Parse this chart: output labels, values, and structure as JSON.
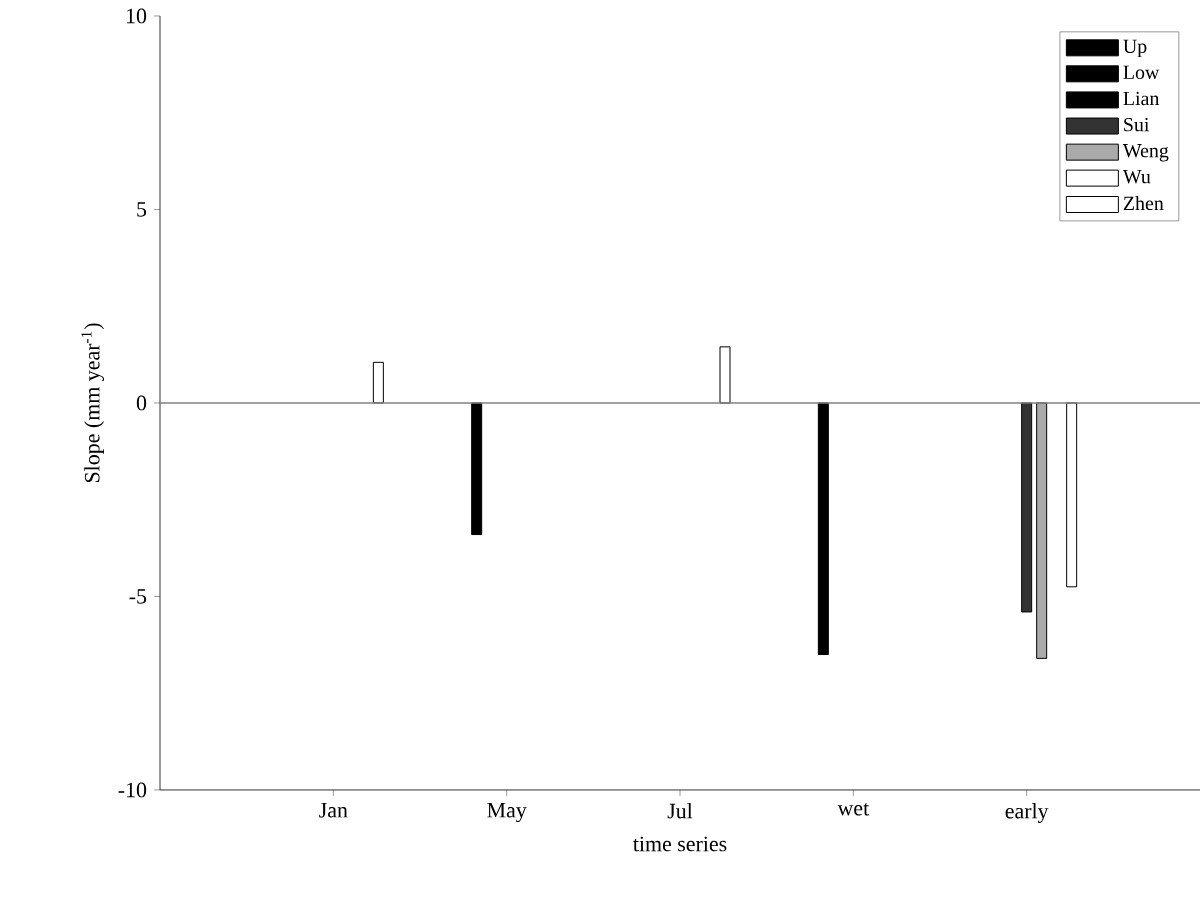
{
  "chart_data": {
    "type": "bar",
    "xlabel": "time series",
    "ylabel": "Slope (mm year$^{-1}$)",
    "categories": [
      "Jan",
      "May",
      "Jul",
      "wet",
      "early"
    ],
    "series": [
      {
        "name": "Up",
        "color": "#000000",
        "values": [
          null,
          null,
          null,
          null,
          null
        ]
      },
      {
        "name": "Low",
        "color": "#000000",
        "values": [
          null,
          -3.4,
          null,
          -6.5,
          null
        ]
      },
      {
        "name": "Lian",
        "color": "#000000",
        "values": [
          null,
          null,
          null,
          null,
          null
        ]
      },
      {
        "name": "Sui",
        "color": "#333333",
        "values": [
          null,
          null,
          null,
          null,
          -5.4
        ]
      },
      {
        "name": "Weng",
        "color": "#aaaaaa",
        "values": [
          null,
          null,
          null,
          null,
          -6.6
        ]
      },
      {
        "name": "Wu",
        "color": "#ffffff",
        "values": [
          null,
          null,
          null,
          null,
          null
        ]
      },
      {
        "name": "Zhen",
        "color": "#ffffff",
        "values": [
          1.05,
          null,
          1.45,
          null,
          -4.75
        ]
      }
    ],
    "ylim": [
      -10,
      10
    ],
    "yticks": [
      -10,
      -5,
      0,
      5,
      10
    ],
    "ref_lines": [
      {
        "axis": "y",
        "value": 0,
        "color": "#808080"
      }
    ],
    "legend": "top right",
    "grid": false
  }
}
